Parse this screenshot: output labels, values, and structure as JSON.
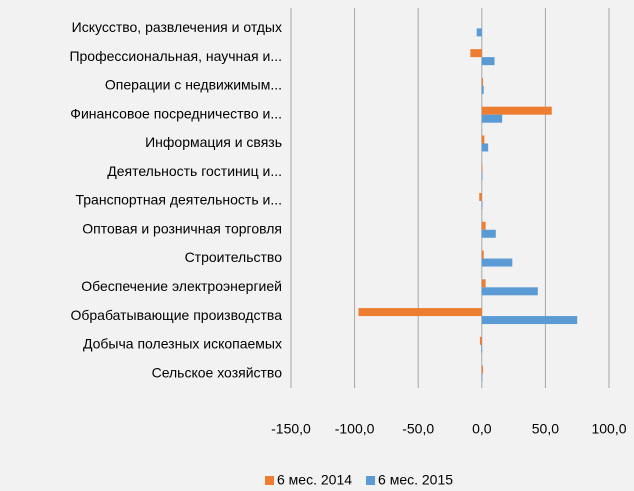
{
  "chart_data": {
    "type": "barh",
    "categories": [
      "Искусство, развлечения и отдых",
      "Профессиональная, научная и...",
      "Операции с недвижимым...",
      "Финансовое посредничество и...",
      "Информация и связь",
      "Деятельность гостиниц и...",
      "Транспортная деятельность и...",
      "Оптовая и розничная торговля",
      "Строительство",
      "Обеспечение электроэнергией",
      "Обрабатывающие  производства",
      "Добыча полезных ископаемых",
      "Сельское хозяйство"
    ],
    "series": [
      {
        "name": "6 мес. 2014",
        "color": "#ed7d31",
        "values": [
          0,
          -9,
          1,
          55,
          2,
          0.5,
          -2,
          3,
          1.5,
          3,
          -97,
          -1.5,
          1
        ]
      },
      {
        "name": "6 мес. 2015",
        "color": "#5b9bd5",
        "values": [
          -4,
          10,
          1.5,
          16,
          5,
          0.5,
          0.5,
          11,
          24,
          44,
          75,
          -0.5,
          0.5
        ]
      }
    ],
    "xlim": [
      -150,
      100
    ],
    "xticks": [
      {
        "value": -150,
        "label": "-150,0"
      },
      {
        "value": -100,
        "label": "-100,0"
      },
      {
        "value": -50,
        "label": "-50,0"
      },
      {
        "value": 0,
        "label": "0,0"
      },
      {
        "value": 50,
        "label": "50,0"
      },
      {
        "value": 100,
        "label": "100,0"
      }
    ],
    "grid": true,
    "legend": "bottom"
  }
}
